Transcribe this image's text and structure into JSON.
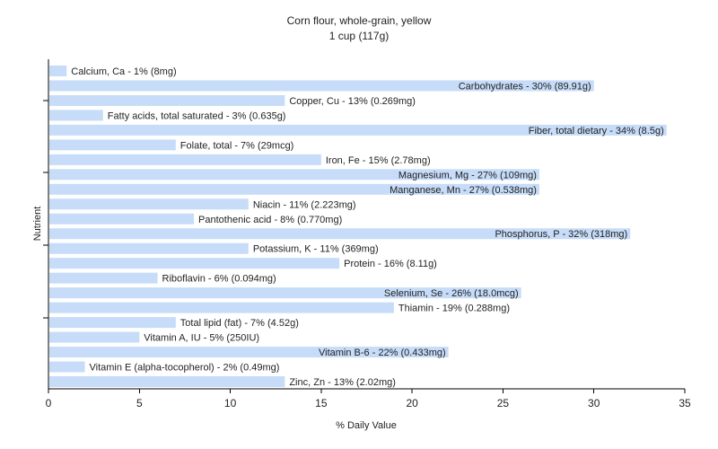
{
  "chart_data": {
    "type": "bar",
    "orientation": "horizontal",
    "title": "Corn flour, whole-grain, yellow",
    "subtitle": "1 cup (117g)",
    "xlabel": "% Daily Value",
    "ylabel": "Nutrient",
    "xlim": [
      0,
      35
    ],
    "xticks": [
      0,
      5,
      10,
      15,
      20,
      25,
      30,
      35
    ],
    "grid": false,
    "bars": [
      {
        "label": "Calcium, Ca - 1% (8mg)",
        "value": 1
      },
      {
        "label": "Carbohydrates - 30% (89.91g)",
        "value": 30
      },
      {
        "label": "Copper, Cu - 13% (0.269mg)",
        "value": 13
      },
      {
        "label": "Fatty acids, total saturated - 3% (0.635g)",
        "value": 3
      },
      {
        "label": "Fiber, total dietary - 34% (8.5g)",
        "value": 34
      },
      {
        "label": "Folate, total - 7% (29mcg)",
        "value": 7
      },
      {
        "label": "Iron, Fe - 15% (2.78mg)",
        "value": 15
      },
      {
        "label": "Magnesium, Mg - 27% (109mg)",
        "value": 27
      },
      {
        "label": "Manganese, Mn - 27% (0.538mg)",
        "value": 27
      },
      {
        "label": "Niacin - 11% (2.223mg)",
        "value": 11
      },
      {
        "label": "Pantothenic acid - 8% (0.770mg)",
        "value": 8
      },
      {
        "label": "Phosphorus, P - 32% (318mg)",
        "value": 32
      },
      {
        "label": "Potassium, K - 11% (369mg)",
        "value": 11
      },
      {
        "label": "Protein - 16% (8.11g)",
        "value": 16
      },
      {
        "label": "Riboflavin - 6% (0.094mg)",
        "value": 6
      },
      {
        "label": "Selenium, Se - 26% (18.0mcg)",
        "value": 26
      },
      {
        "label": "Thiamin - 19% (0.288mg)",
        "value": 19
      },
      {
        "label": "Total lipid (fat) - 7% (4.52g)",
        "value": 7
      },
      {
        "label": "Vitamin A, IU - 5% (250IU)",
        "value": 5
      },
      {
        "label": "Vitamin B-6 - 22% (0.433mg)",
        "value": 22
      },
      {
        "label": "Vitamin E (alpha-tocopherol) - 2% (0.49mg)",
        "value": 2
      },
      {
        "label": "Zinc, Zn - 13% (2.02mg)",
        "value": 13
      }
    ],
    "bar_color": "#c6dcf8"
  }
}
